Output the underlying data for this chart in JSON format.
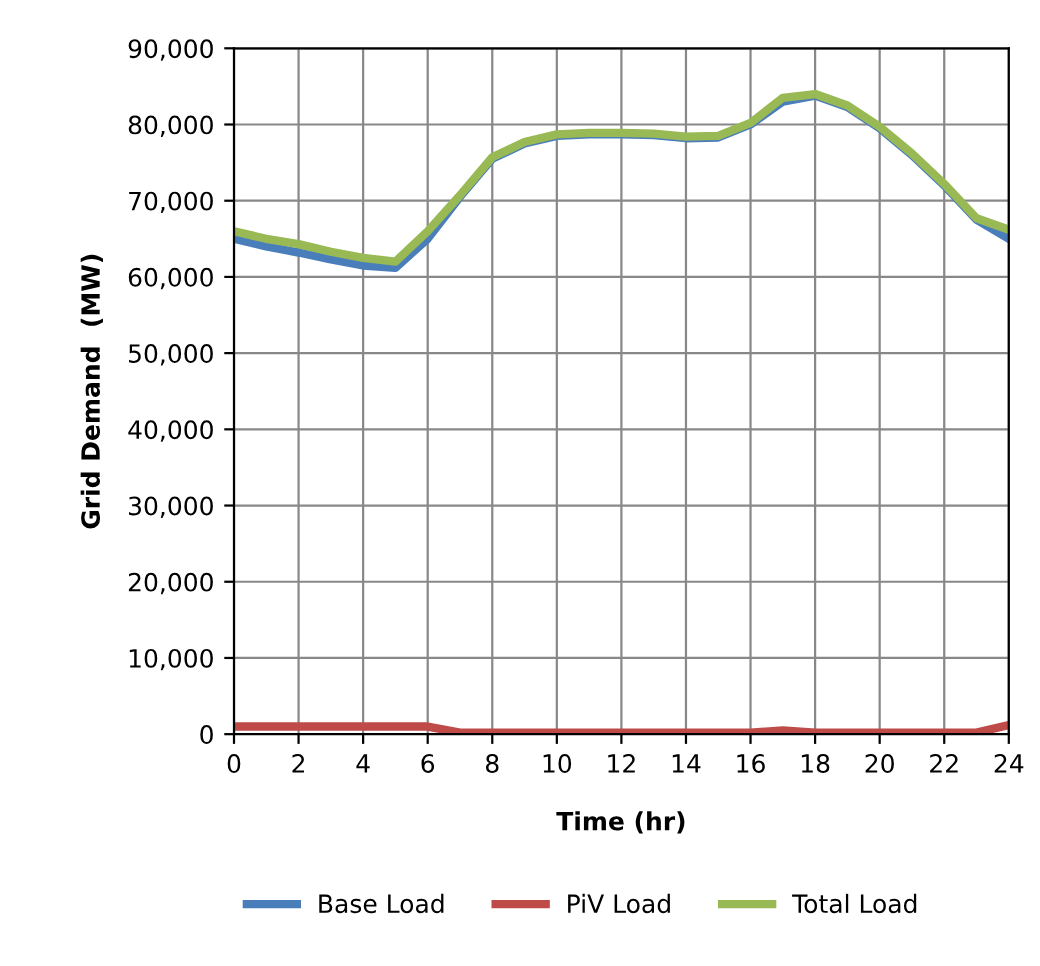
{
  "chart_data": {
    "type": "line",
    "xlabel": "Time (hr)",
    "ylabel": "Grid Demand  (MW)",
    "x": [
      0,
      1,
      2,
      3,
      4,
      5,
      6,
      7,
      8,
      9,
      10,
      11,
      12,
      13,
      14,
      15,
      16,
      17,
      18,
      19,
      20,
      21,
      22,
      23,
      24
    ],
    "series": [
      {
        "name": "Base Load",
        "color": "#4a7ebb",
        "values": [
          65000,
          64000,
          63200,
          62300,
          61500,
          61200,
          65000,
          70500,
          75500,
          77500,
          78500,
          78700,
          78700,
          78600,
          78200,
          78300,
          80000,
          83000,
          83800,
          82300,
          79500,
          76000,
          72000,
          67500,
          65000
        ]
      },
      {
        "name": "PiV Load",
        "color": "#be4b48",
        "values": [
          1000,
          1000,
          1000,
          1000,
          1000,
          1000,
          1000,
          200,
          200,
          200,
          200,
          200,
          200,
          200,
          200,
          200,
          200,
          500,
          200,
          200,
          200,
          200,
          200,
          200,
          1200
        ]
      },
      {
        "name": "Total Load",
        "color": "#98b954",
        "values": [
          66000,
          65000,
          64300,
          63300,
          62500,
          62000,
          66000,
          70700,
          75700,
          77700,
          78700,
          78900,
          78900,
          78800,
          78400,
          78500,
          80200,
          83500,
          84000,
          82500,
          79700,
          76200,
          72200,
          67700,
          66200
        ]
      }
    ],
    "xlim": [
      0,
      24
    ],
    "xticks": [
      0,
      2,
      4,
      6,
      8,
      10,
      12,
      14,
      16,
      18,
      20,
      22,
      24
    ],
    "ylim": [
      0,
      90000
    ],
    "yticks": [
      {
        "value": 0,
        "label": "0"
      },
      {
        "value": 10000,
        "label": "10,000"
      },
      {
        "value": 20000,
        "label": "20,000"
      },
      {
        "value": 30000,
        "label": "30,000"
      },
      {
        "value": 40000,
        "label": "40,000"
      },
      {
        "value": 50000,
        "label": "50,000"
      },
      {
        "value": 60000,
        "label": "60,000"
      },
      {
        "value": 70000,
        "label": "70,000"
      },
      {
        "value": 80000,
        "label": "80,000"
      },
      {
        "value": 90000,
        "label": "90,000"
      }
    ],
    "grid": true,
    "legend": "bottom",
    "marker": "none",
    "line_style": "solid"
  }
}
